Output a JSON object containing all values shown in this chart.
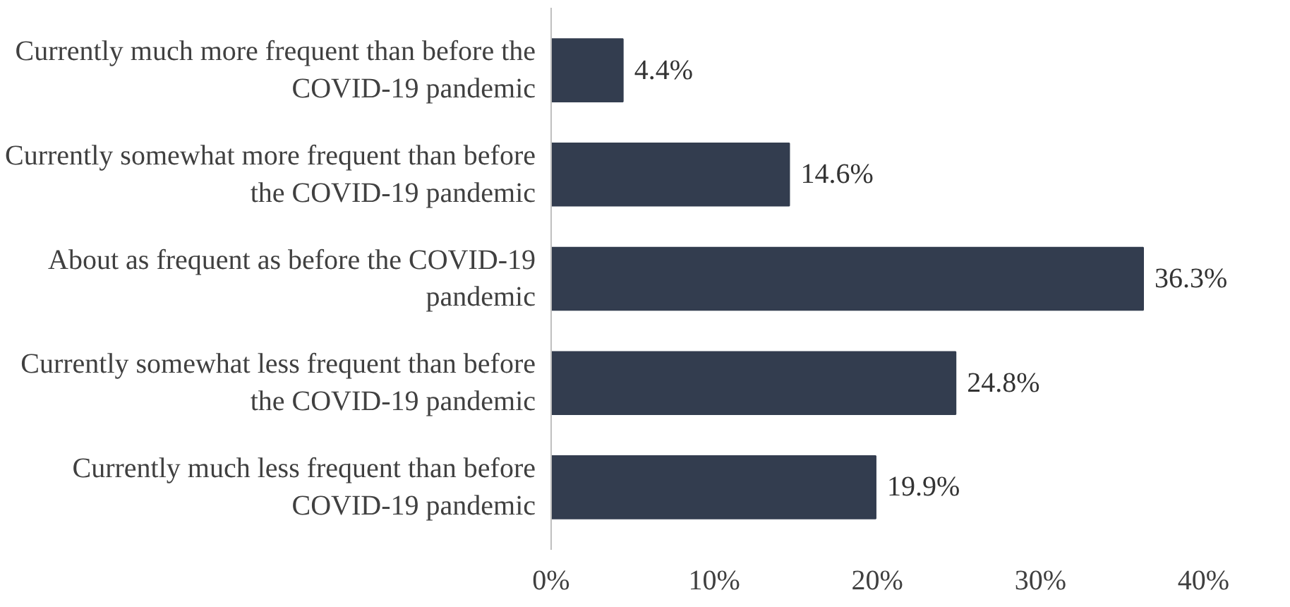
{
  "chart_data": {
    "type": "bar",
    "orientation": "horizontal",
    "categories": [
      "Currently much more frequent than before the\nCOVID-19 pandemic",
      "Currently somewhat more frequent than before\nthe COVID-19 pandemic",
      "About as frequent as before the COVID-19\npandemic",
      "Currently somewhat less frequent than before\nthe COVID-19 pandemic",
      "Currently much less frequent than before\nCOVID-19 pandemic"
    ],
    "values": [
      4.4,
      14.6,
      36.3,
      24.8,
      19.9
    ],
    "value_labels": [
      "4.4%",
      "14.6%",
      "36.3%",
      "24.8%",
      "19.9%"
    ],
    "color": "#333d4f",
    "xlim": [
      0,
      40
    ],
    "xticks": [
      {
        "value": 0,
        "label": "0%"
      },
      {
        "value": 10,
        "label": "10%"
      },
      {
        "value": 20,
        "label": "20%"
      },
      {
        "value": 30,
        "label": "30%"
      },
      {
        "value": 40,
        "label": "40%"
      }
    ],
    "grid": false
  }
}
